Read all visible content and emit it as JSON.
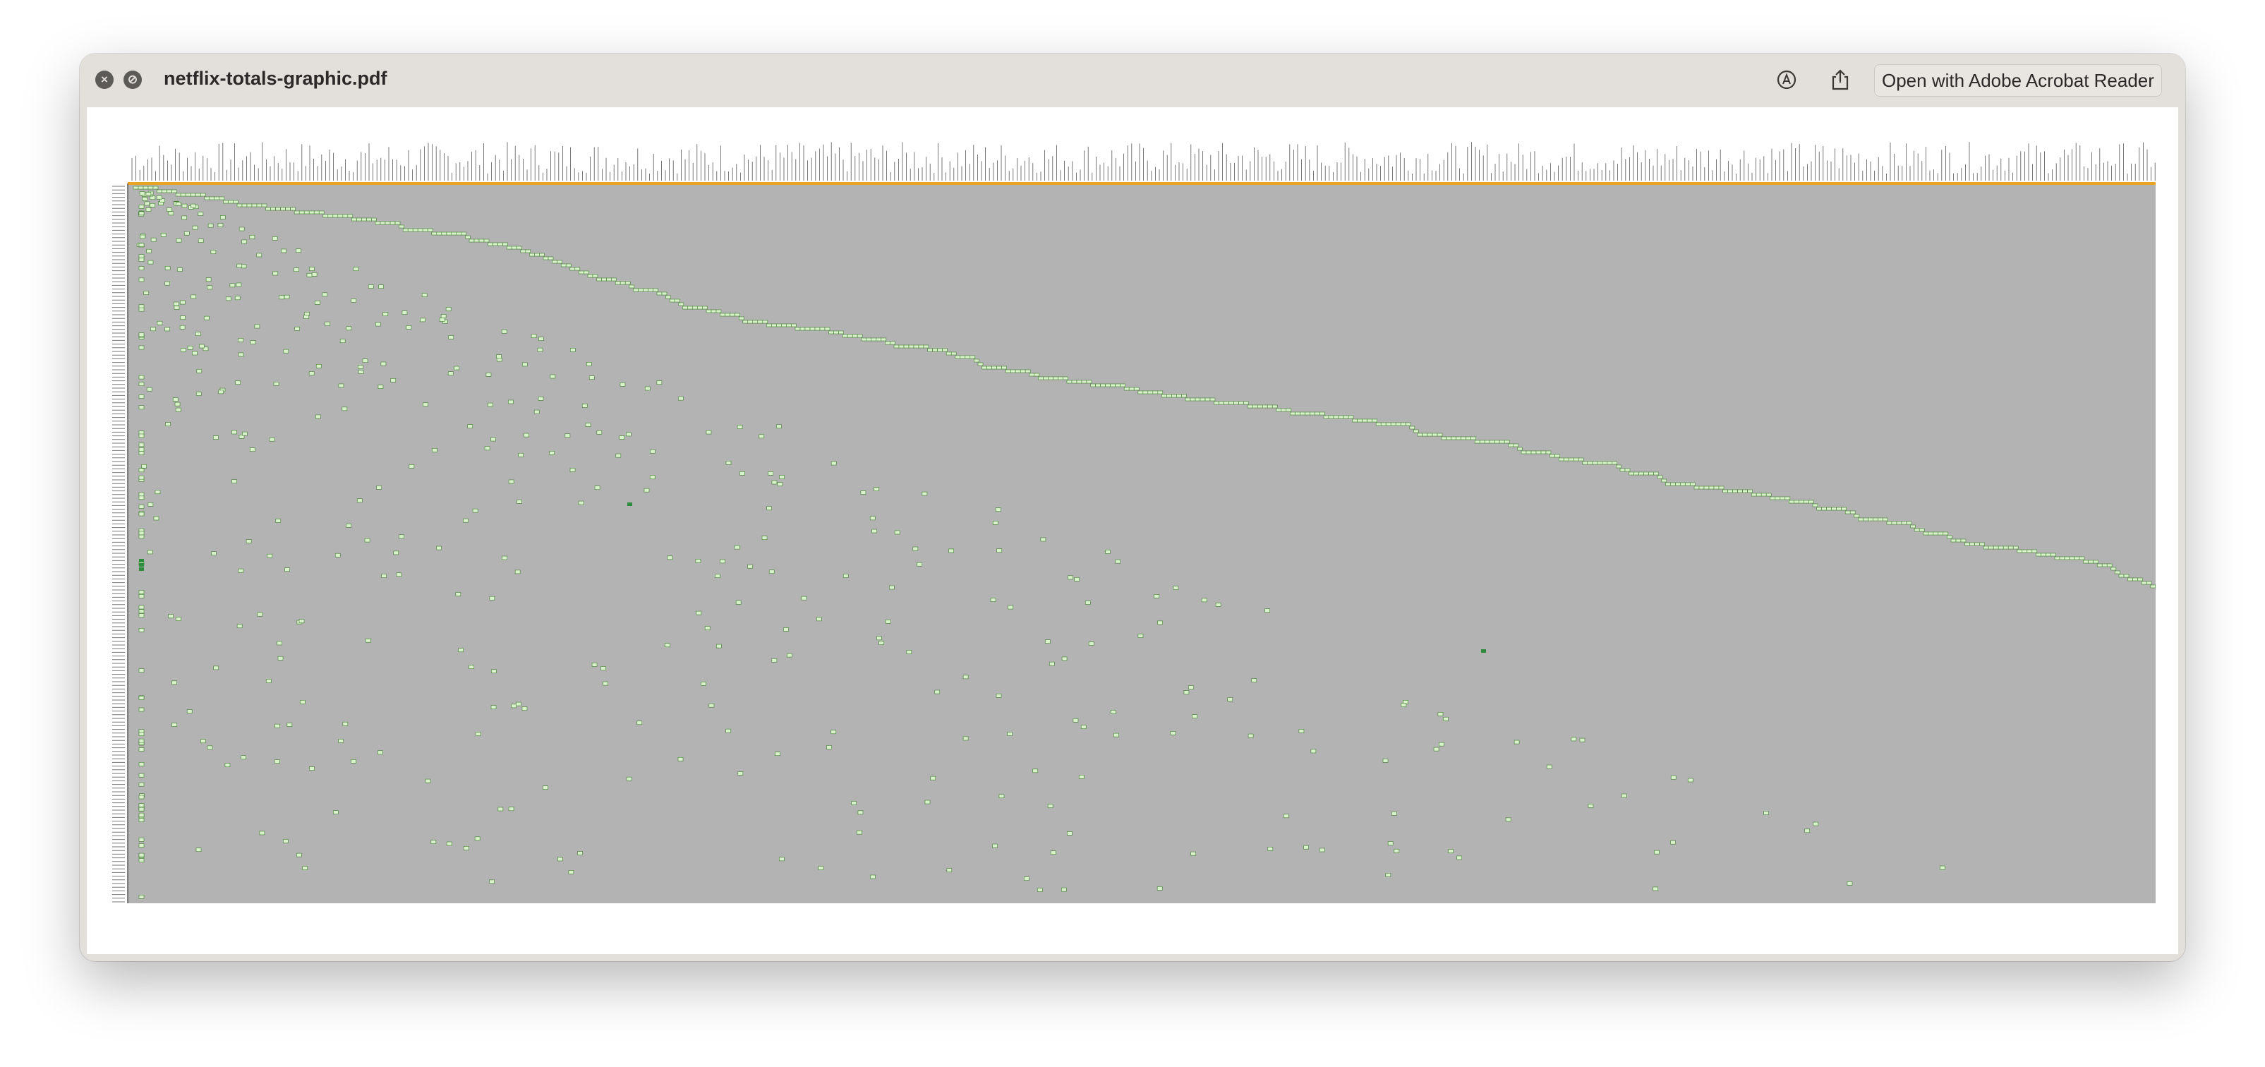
{
  "window": {
    "title": "netflix-totals-graphic.pdf",
    "open_with_label": "Open with Adobe Acrobat Reader"
  },
  "icons": {
    "close": "close-icon",
    "block": "minimize-icon",
    "markup": "markup-pen-icon",
    "share": "share-icon"
  },
  "graphic": {
    "background_color": "#b3b3b3",
    "header_color": "#e8a423",
    "cell_color": "#d9f2cc",
    "cell_border_color": "#3c7a2a",
    "highlight_color": "#2e8b3a"
  }
}
